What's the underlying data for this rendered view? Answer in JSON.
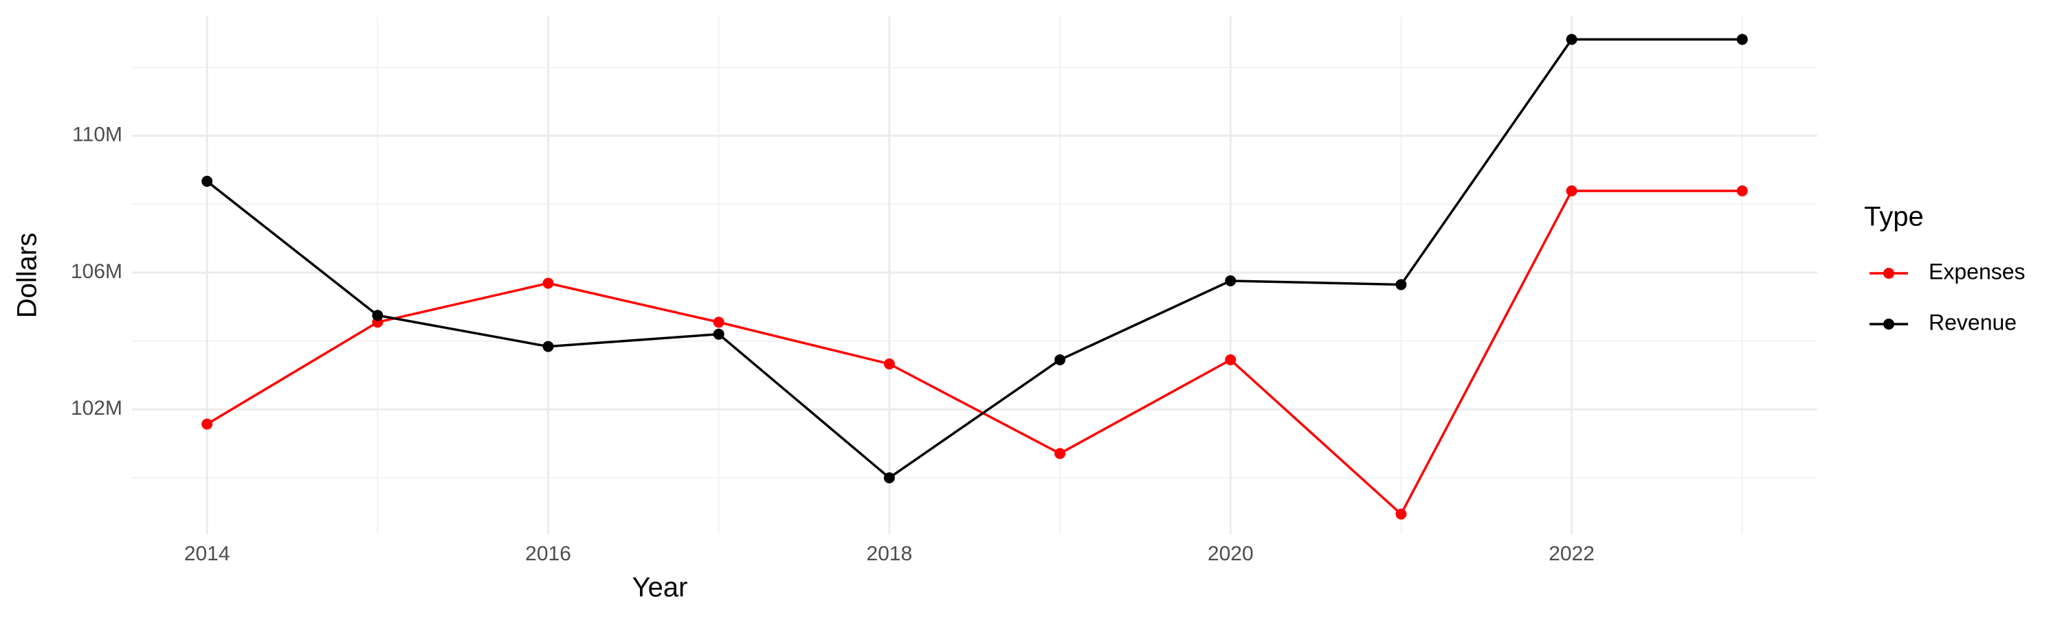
{
  "chart_data": {
    "type": "line",
    "x_label": "Year",
    "y_label": "Dollars",
    "x": [
      2014,
      2015,
      2016,
      2017,
      2018,
      2019,
      2020,
      2021,
      2022,
      2023
    ],
    "series": [
      {
        "name": "Expenses",
        "color": "#ff0000",
        "values": [
          101570000,
          104550000,
          105690000,
          104550000,
          103330000,
          100710000,
          103450000,
          98940000,
          108390000,
          108390000
        ]
      },
      {
        "name": "Revenue",
        "color": "#000000",
        "values": [
          108670000,
          104750000,
          103840000,
          104200000,
          100000000,
          103450000,
          105760000,
          105650000,
          112820000,
          112820000
        ]
      }
    ],
    "xlim": [
      2013.56,
      2023.44
    ],
    "xticks": [
      2014,
      2016,
      2018,
      2020,
      2022
    ],
    "ylim": [
      98350000,
      113490000
    ],
    "yticks": [
      {
        "value": 102000000,
        "label": "102M"
      },
      {
        "value": 106000000,
        "label": "106M"
      },
      {
        "value": 110000000,
        "label": "110M"
      }
    ],
    "grid": true,
    "legend": {
      "title": "Type",
      "position": "right"
    }
  }
}
